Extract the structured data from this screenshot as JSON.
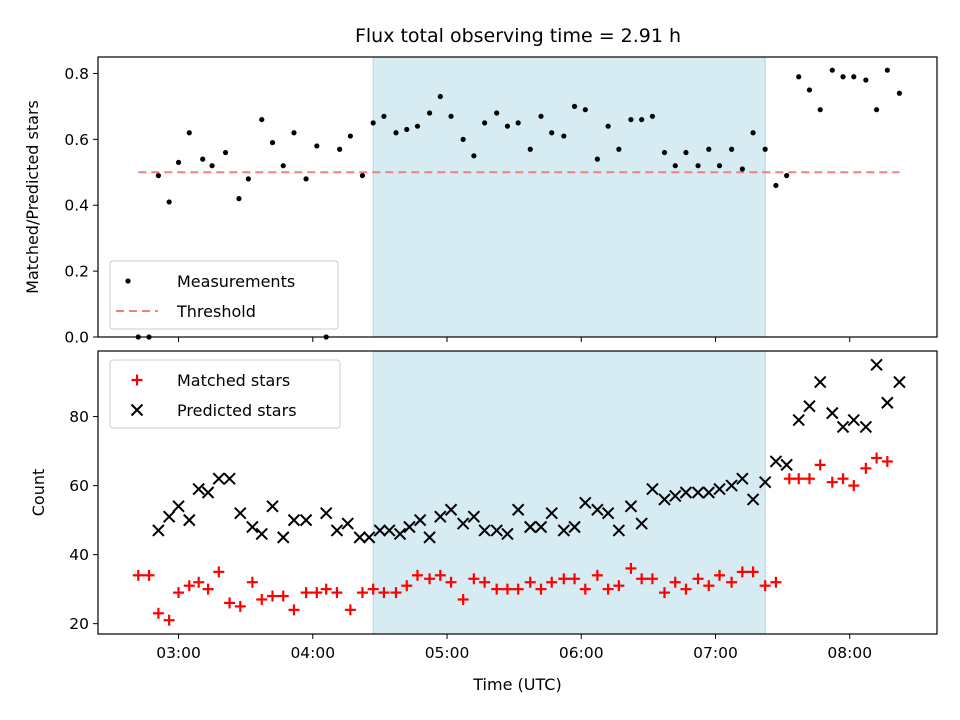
{
  "chart_data": {
    "type": "scatter",
    "title": "Flux total observing time = 2.91 h",
    "xlabel": "Time (UTC)",
    "x_ticks": [
      "03:00",
      "04:00",
      "05:00",
      "06:00",
      "07:00",
      "08:00"
    ],
    "x_range_hours": [
      2.4,
      8.65
    ],
    "shaded_interval_hours": [
      4.45,
      7.37
    ],
    "colors": {
      "shade": "#add8e6",
      "measurements": "#000000",
      "threshold": "#f08080",
      "matched": "#ff0000",
      "predicted": "#000000",
      "frame": "#000000"
    },
    "panels": [
      {
        "ylabel": "Matched/Predicted stars",
        "ylim": [
          0,
          0.85
        ],
        "y_ticks": [
          "0.0",
          "0.2",
          "0.4",
          "0.6",
          "0.8"
        ],
        "legend_position": "lower-left",
        "series": [
          {
            "name": "Measurements",
            "marker": "dot",
            "points": [
              [
                2.7,
                0.0
              ],
              [
                2.78,
                0.0
              ],
              [
                2.85,
                0.49
              ],
              [
                2.93,
                0.41
              ],
              [
                3.0,
                0.53
              ],
              [
                3.08,
                0.62
              ],
              [
                3.18,
                0.54
              ],
              [
                3.25,
                0.52
              ],
              [
                3.35,
                0.56
              ],
              [
                3.45,
                0.42
              ],
              [
                3.52,
                0.48
              ],
              [
                3.62,
                0.66
              ],
              [
                3.7,
                0.59
              ],
              [
                3.78,
                0.52
              ],
              [
                3.86,
                0.62
              ],
              [
                3.95,
                0.48
              ],
              [
                4.03,
                0.58
              ],
              [
                4.2,
                0.57
              ],
              [
                4.28,
                0.61
              ],
              [
                4.1,
                0.0
              ],
              [
                4.37,
                0.49
              ],
              [
                4.45,
                0.65
              ],
              [
                4.53,
                0.67
              ],
              [
                4.62,
                0.62
              ],
              [
                4.7,
                0.63
              ],
              [
                4.78,
                0.64
              ],
              [
                4.87,
                0.68
              ],
              [
                4.95,
                0.73
              ],
              [
                5.03,
                0.67
              ],
              [
                5.12,
                0.6
              ],
              [
                5.2,
                0.55
              ],
              [
                5.28,
                0.65
              ],
              [
                5.37,
                0.68
              ],
              [
                5.45,
                0.64
              ],
              [
                5.53,
                0.65
              ],
              [
                5.62,
                0.57
              ],
              [
                5.7,
                0.67
              ],
              [
                5.78,
                0.62
              ],
              [
                5.87,
                0.61
              ],
              [
                5.95,
                0.7
              ],
              [
                6.03,
                0.69
              ],
              [
                6.12,
                0.54
              ],
              [
                6.2,
                0.64
              ],
              [
                6.28,
                0.57
              ],
              [
                6.37,
                0.66
              ],
              [
                6.45,
                0.66
              ],
              [
                6.53,
                0.67
              ],
              [
                6.62,
                0.56
              ],
              [
                6.7,
                0.52
              ],
              [
                6.78,
                0.56
              ],
              [
                6.87,
                0.52
              ],
              [
                6.95,
                0.57
              ],
              [
                7.03,
                0.52
              ],
              [
                7.12,
                0.57
              ],
              [
                7.2,
                0.51
              ],
              [
                7.28,
                0.62
              ],
              [
                7.37,
                0.57
              ],
              [
                7.45,
                0.46
              ],
              [
                7.53,
                0.49
              ],
              [
                7.62,
                0.79
              ],
              [
                7.7,
                0.75
              ],
              [
                7.78,
                0.69
              ],
              [
                7.87,
                0.81
              ],
              [
                7.95,
                0.79
              ],
              [
                8.03,
                0.79
              ],
              [
                8.12,
                0.78
              ],
              [
                8.2,
                0.69
              ],
              [
                8.28,
                0.81
              ],
              [
                8.37,
                0.74
              ]
            ]
          },
          {
            "name": "Threshold",
            "marker": "dashed-line",
            "points": [
              [
                2.7,
                0.5
              ],
              [
                8.37,
                0.5
              ]
            ]
          }
        ]
      },
      {
        "ylabel": "Count",
        "ylim": [
          17,
          99
        ],
        "y_ticks": [
          "20",
          "40",
          "60",
          "80"
        ],
        "legend_position": "upper-left",
        "series": [
          {
            "name": "Matched stars",
            "marker": "plus",
            "points": [
              [
                2.7,
                34
              ],
              [
                2.78,
                34
              ],
              [
                2.85,
                23
              ],
              [
                2.93,
                21
              ],
              [
                3.0,
                29
              ],
              [
                3.08,
                31
              ],
              [
                3.15,
                32
              ],
              [
                3.22,
                30
              ],
              [
                3.3,
                35
              ],
              [
                3.38,
                26
              ],
              [
                3.46,
                25
              ],
              [
                3.55,
                32
              ],
              [
                3.62,
                27
              ],
              [
                3.7,
                28
              ],
              [
                3.78,
                28
              ],
              [
                3.86,
                24
              ],
              [
                3.95,
                29
              ],
              [
                4.03,
                29
              ],
              [
                4.1,
                30
              ],
              [
                4.18,
                29
              ],
              [
                4.28,
                24
              ],
              [
                4.37,
                29
              ],
              [
                4.45,
                30
              ],
              [
                4.53,
                29
              ],
              [
                4.62,
                29
              ],
              [
                4.7,
                31
              ],
              [
                4.78,
                34
              ],
              [
                4.87,
                33
              ],
              [
                4.95,
                34
              ],
              [
                5.03,
                32
              ],
              [
                5.12,
                27
              ],
              [
                5.2,
                33
              ],
              [
                5.28,
                32
              ],
              [
                5.37,
                30
              ],
              [
                5.45,
                30
              ],
              [
                5.53,
                30
              ],
              [
                5.62,
                32
              ],
              [
                5.7,
                30
              ],
              [
                5.78,
                32
              ],
              [
                5.87,
                33
              ],
              [
                5.95,
                33
              ],
              [
                6.03,
                30
              ],
              [
                6.12,
                34
              ],
              [
                6.2,
                30
              ],
              [
                6.28,
                31
              ],
              [
                6.37,
                36
              ],
              [
                6.45,
                33
              ],
              [
                6.53,
                33
              ],
              [
                6.62,
                29
              ],
              [
                6.7,
                32
              ],
              [
                6.78,
                30
              ],
              [
                6.87,
                33
              ],
              [
                6.95,
                31
              ],
              [
                7.03,
                34
              ],
              [
                7.12,
                32
              ],
              [
                7.2,
                35
              ],
              [
                7.28,
                35
              ],
              [
                7.37,
                31
              ],
              [
                7.45,
                32
              ],
              [
                7.55,
                62
              ],
              [
                7.62,
                62
              ],
              [
                7.7,
                62
              ],
              [
                7.78,
                66
              ],
              [
                7.87,
                61
              ],
              [
                7.95,
                62
              ],
              [
                8.03,
                60
              ],
              [
                8.12,
                65
              ],
              [
                8.2,
                68
              ],
              [
                8.28,
                67
              ]
            ]
          },
          {
            "name": "Predicted stars",
            "marker": "x",
            "points": [
              [
                2.85,
                47
              ],
              [
                2.93,
                51
              ],
              [
                3.0,
                54
              ],
              [
                3.08,
                50
              ],
              [
                3.15,
                59
              ],
              [
                3.22,
                58
              ],
              [
                3.3,
                62
              ],
              [
                3.38,
                62
              ],
              [
                3.46,
                52
              ],
              [
                3.55,
                48
              ],
              [
                3.62,
                46
              ],
              [
                3.7,
                54
              ],
              [
                3.78,
                45
              ],
              [
                3.86,
                50
              ],
              [
                3.95,
                50
              ],
              [
                4.1,
                52
              ],
              [
                4.18,
                47
              ],
              [
                4.26,
                49
              ],
              [
                4.35,
                45
              ],
              [
                4.42,
                45
              ],
              [
                4.5,
                47
              ],
              [
                4.57,
                47
              ],
              [
                4.65,
                46
              ],
              [
                4.72,
                48
              ],
              [
                4.8,
                50
              ],
              [
                4.87,
                45
              ],
              [
                4.95,
                51
              ],
              [
                5.03,
                53
              ],
              [
                5.12,
                49
              ],
              [
                5.2,
                51
              ],
              [
                5.28,
                47
              ],
              [
                5.37,
                47
              ],
              [
                5.45,
                46
              ],
              [
                5.53,
                53
              ],
              [
                5.62,
                48
              ],
              [
                5.7,
                48
              ],
              [
                5.78,
                52
              ],
              [
                5.87,
                47
              ],
              [
                5.95,
                48
              ],
              [
                6.03,
                55
              ],
              [
                6.12,
                53
              ],
              [
                6.2,
                52
              ],
              [
                6.28,
                47
              ],
              [
                6.37,
                54
              ],
              [
                6.45,
                49
              ],
              [
                6.53,
                59
              ],
              [
                6.62,
                56
              ],
              [
                6.7,
                57
              ],
              [
                6.78,
                58
              ],
              [
                6.87,
                58
              ],
              [
                6.95,
                58
              ],
              [
                7.03,
                59
              ],
              [
                7.12,
                60
              ],
              [
                7.2,
                62
              ],
              [
                7.28,
                56
              ],
              [
                7.37,
                61
              ],
              [
                7.45,
                67
              ],
              [
                7.53,
                66
              ],
              [
                7.62,
                79
              ],
              [
                7.7,
                83
              ],
              [
                7.78,
                90
              ],
              [
                7.87,
                81
              ],
              [
                7.95,
                77
              ],
              [
                8.03,
                79
              ],
              [
                8.12,
                77
              ],
              [
                8.2,
                95
              ],
              [
                8.28,
                84
              ],
              [
                8.37,
                90
              ]
            ]
          }
        ]
      }
    ]
  }
}
